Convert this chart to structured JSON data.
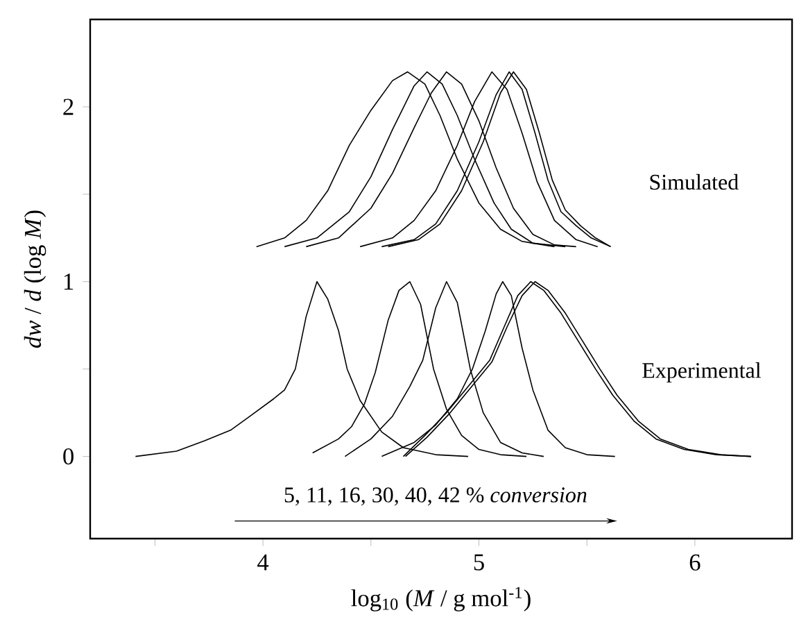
{
  "chart_data": {
    "type": "line",
    "xlabel": "log$_{10}$ (*M* / g mol$^{-1}$)",
    "ylabel": "*dw* / *d* (log *M*)",
    "xlim": [
      3.2,
      6.45
    ],
    "ylim": [
      -0.47,
      2.5
    ],
    "xticks": [
      {
        "value": 3.5,
        "label": null
      },
      4,
      {
        "value": 4.5,
        "label": null
      },
      5,
      {
        "value": 5.5,
        "label": null
      },
      6
    ],
    "yticks": [
      0,
      {
        "value": 0.5,
        "label": null
      },
      1,
      {
        "value": 1.5,
        "label": null
      },
      2
    ],
    "marker": "none",
    "line_style": "solid",
    "annotations": [
      "Simulated",
      "Experimental",
      "5, 11, 16, 30, 40, 42 % *conversion*"
    ],
    "series": [
      {
        "color": "#000000",
        "x": [
          3.97,
          4.1,
          4.2,
          4.3,
          4.4,
          4.5,
          4.6,
          4.67,
          4.75,
          4.82,
          4.9,
          5.0,
          5.1,
          5.2,
          5.35
        ],
        "values": [
          1.2,
          1.25,
          1.35,
          1.52,
          1.78,
          1.98,
          2.15,
          2.2,
          2.13,
          1.95,
          1.7,
          1.45,
          1.3,
          1.23,
          1.2
        ]
      },
      {
        "color": "#000000",
        "x": [
          4.1,
          4.25,
          4.4,
          4.5,
          4.6,
          4.7,
          4.76,
          4.83,
          4.9,
          4.98,
          5.07,
          5.15,
          5.25,
          5.4
        ],
        "values": [
          1.2,
          1.25,
          1.4,
          1.6,
          1.87,
          2.12,
          2.2,
          2.13,
          1.95,
          1.7,
          1.45,
          1.3,
          1.22,
          1.2
        ]
      },
      {
        "color": "#000000",
        "x": [
          4.2,
          4.35,
          4.5,
          4.6,
          4.7,
          4.78,
          4.85,
          4.92,
          5.0,
          5.08,
          5.16,
          5.25,
          5.35,
          5.45
        ],
        "values": [
          1.2,
          1.25,
          1.42,
          1.62,
          1.88,
          2.08,
          2.2,
          2.13,
          1.92,
          1.65,
          1.42,
          1.27,
          1.21,
          1.2
        ]
      },
      {
        "color": "#000000",
        "x": [
          4.45,
          4.6,
          4.7,
          4.8,
          4.9,
          4.98,
          5.06,
          5.13,
          5.2,
          5.27,
          5.35,
          5.45,
          5.55
        ],
        "values": [
          1.2,
          1.25,
          1.35,
          1.52,
          1.78,
          2.03,
          2.2,
          2.1,
          1.85,
          1.57,
          1.35,
          1.24,
          1.2
        ]
      },
      {
        "color": "#000000",
        "x": [
          4.55,
          4.7,
          4.8,
          4.9,
          5.0,
          5.08,
          5.14,
          5.2,
          5.26,
          5.32,
          5.38,
          5.45,
          5.52,
          5.61
        ],
        "values": [
          1.2,
          1.24,
          1.33,
          1.52,
          1.8,
          2.07,
          2.2,
          2.1,
          1.85,
          1.58,
          1.4,
          1.32,
          1.25,
          1.2
        ]
      },
      {
        "color": "#000000",
        "x": [
          4.58,
          4.72,
          4.82,
          4.92,
          5.02,
          5.1,
          5.16,
          5.22,
          5.28,
          5.34,
          5.4,
          5.47,
          5.54,
          5.61
        ],
        "values": [
          1.2,
          1.24,
          1.33,
          1.52,
          1.8,
          2.08,
          2.2,
          2.1,
          1.85,
          1.58,
          1.41,
          1.32,
          1.25,
          1.2
        ]
      },
      {
        "color": "#000000",
        "x": [
          3.41,
          3.6,
          3.73,
          3.85,
          3.94,
          4.05,
          4.1,
          4.15,
          4.2,
          4.25,
          4.3,
          4.35,
          4.39,
          4.45,
          4.55,
          4.65,
          4.8,
          4.95
        ],
        "values": [
          0,
          0.03,
          0.09,
          0.15,
          0.23,
          0.33,
          0.38,
          0.5,
          0.8,
          1.0,
          0.9,
          0.72,
          0.5,
          0.32,
          0.14,
          0.05,
          0.01,
          0
        ]
      },
      {
        "color": "#000000",
        "x": [
          4.23,
          4.35,
          4.41,
          4.47,
          4.52,
          4.58,
          4.63,
          4.68,
          4.73,
          4.79,
          4.85,
          4.92,
          5.0,
          5.1,
          5.22
        ],
        "values": [
          0.02,
          0.1,
          0.17,
          0.3,
          0.48,
          0.78,
          0.95,
          1.0,
          0.87,
          0.5,
          0.27,
          0.12,
          0.04,
          0.01,
          0
        ]
      },
      {
        "color": "#000000",
        "x": [
          4.38,
          4.5,
          4.6,
          4.68,
          4.74,
          4.8,
          4.85,
          4.9,
          4.96,
          5.02,
          5.1,
          5.2,
          5.3
        ],
        "values": [
          0,
          0.1,
          0.23,
          0.4,
          0.55,
          0.85,
          1.0,
          0.88,
          0.5,
          0.25,
          0.08,
          0.02,
          0
        ]
      },
      {
        "color": "#000000",
        "x": [
          4.55,
          4.7,
          4.8,
          4.9,
          4.97,
          5.03,
          5.08,
          5.11,
          5.15,
          5.2,
          5.25,
          5.32,
          5.4,
          5.5,
          5.63
        ],
        "values": [
          0,
          0.08,
          0.18,
          0.33,
          0.5,
          0.72,
          0.93,
          1.0,
          0.92,
          0.62,
          0.38,
          0.15,
          0.05,
          0.01,
          0
        ]
      },
      {
        "color": "#000000",
        "x": [
          4.65,
          4.75,
          4.85,
          4.95,
          5.05,
          5.12,
          5.18,
          5.24,
          5.3,
          5.38,
          5.46,
          5.54,
          5.62,
          5.72,
          5.82,
          5.95,
          6.1,
          6.26
        ],
        "values": [
          0,
          0.12,
          0.25,
          0.4,
          0.55,
          0.75,
          0.92,
          1.0,
          0.95,
          0.82,
          0.66,
          0.5,
          0.35,
          0.2,
          0.1,
          0.04,
          0.01,
          0
        ]
      },
      {
        "color": "#000000",
        "x": [
          4.66,
          4.76,
          4.86,
          4.96,
          5.06,
          5.13,
          5.2,
          5.26,
          5.32,
          5.4,
          5.48,
          5.56,
          5.64,
          5.74,
          5.84,
          5.97,
          6.12,
          6.26
        ],
        "values": [
          0,
          0.11,
          0.24,
          0.39,
          0.54,
          0.74,
          0.92,
          1.0,
          0.95,
          0.82,
          0.66,
          0.5,
          0.35,
          0.2,
          0.1,
          0.04,
          0.01,
          0
        ]
      }
    ]
  }
}
